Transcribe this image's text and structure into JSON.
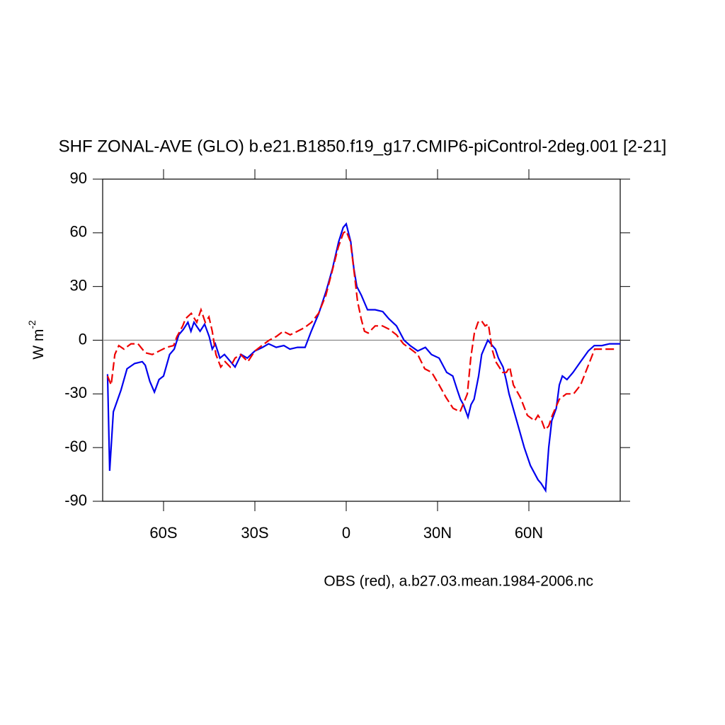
{
  "chart_data": {
    "type": "line",
    "title": "SHF ZONAL-AVE (GLO) b.e21.B1850.f19_g17.CMIP6-piControl-2deg.001 [2-21]",
    "ylabel": "W m",
    "ylabel_superscript": "-2",
    "xlabel": "OBS (red), a.b27.03.mean.1984-2006.nc",
    "xlim": [
      -80,
      90
    ],
    "ylim": [
      -90,
      90
    ],
    "xticks": [
      {
        "value": -60,
        "label": "60S"
      },
      {
        "value": -30,
        "label": "30S"
      },
      0,
      {
        "value": 30,
        "label": "30N"
      },
      {
        "value": 60,
        "label": "60N"
      }
    ],
    "yticks": [
      -90,
      -60,
      -30,
      0,
      30,
      60,
      90
    ],
    "zero_line": true,
    "series": [
      {
        "color": "#0000ee",
        "dash": false,
        "x": [
          -78.4,
          -77.7,
          -76.5,
          -74,
          -72,
          -69.5,
          -67,
          -66,
          -64.5,
          -63,
          -61.5,
          -60,
          -58,
          -56.5,
          -55,
          -53.5,
          -52,
          -51,
          -50,
          -48,
          -46.5,
          -45,
          -44,
          -43,
          -41.5,
          -40,
          -38,
          -36.5,
          -34.5,
          -32.5,
          -30,
          -27.5,
          -25.5,
          -23,
          -20.5,
          -18.5,
          -16,
          -13.5,
          -11.5,
          -9,
          -6.5,
          -4.5,
          -2.5,
          -1,
          0,
          1.5,
          2.5,
          3.5,
          5,
          7,
          9.5,
          12,
          14,
          16.5,
          19,
          21,
          23.5,
          26,
          28,
          30.5,
          33,
          35,
          36.5,
          37.5,
          38.5,
          40,
          41,
          42,
          43.5,
          44.5,
          45.5,
          46.5,
          48,
          49,
          50,
          51.5,
          52.5,
          53.5,
          56,
          58.5,
          60.5,
          63,
          64,
          65.5,
          66.5,
          67.5,
          69,
          70,
          71,
          72.5,
          74.5,
          77,
          79.5,
          81.5,
          84,
          86.5,
          90
        ],
        "values": [
          -19,
          -73,
          -40,
          -28,
          -16,
          -13,
          -12,
          -14,
          -23,
          -29,
          -22,
          -20,
          -8,
          -5,
          3,
          6,
          10,
          5,
          10,
          5,
          9,
          2,
          -5,
          -2,
          -10,
          -8,
          -12,
          -15,
          -8,
          -10,
          -6,
          -4,
          -2,
          -4,
          -3,
          -5,
          -4,
          -4,
          5,
          15,
          28,
          40,
          55,
          63,
          65,
          55,
          40,
          30,
          25,
          17,
          17,
          16,
          12,
          8,
          0,
          -3,
          -6,
          -4,
          -8,
          -10,
          -18,
          -20,
          -28,
          -33,
          -36,
          -43,
          -36,
          -33,
          -20,
          -8,
          -4,
          0,
          -3,
          -5,
          -10,
          -15,
          -22,
          -30,
          -45,
          -60,
          -70,
          -78,
          -80,
          -84,
          -60,
          -45,
          -38,
          -25,
          -20,
          -22,
          -18,
          -12,
          -6,
          -3,
          -3,
          -2,
          -2
        ]
      },
      {
        "color": "#ee0000",
        "dash": true,
        "x": [
          -78.4,
          -77.2,
          -76,
          -74.7,
          -73,
          -70.7,
          -68.4,
          -66,
          -63.7,
          -61.4,
          -59,
          -56.7,
          -55.6,
          -53.7,
          -52.8,
          -50.9,
          -49.1,
          -47.7,
          -46.3,
          -45.1,
          -44,
          -42.8,
          -41.2,
          -39.8,
          -38.1,
          -36.5,
          -34.7,
          -32.3,
          -30,
          -27.7,
          -25.3,
          -23,
          -20.7,
          -18.4,
          -16,
          -13.7,
          -11.4,
          -9.1,
          -6.7,
          -4.4,
          -2.6,
          -0.9,
          0,
          1.4,
          2.6,
          3.7,
          4.9,
          6,
          7.2,
          9.5,
          11.9,
          14.2,
          16.5,
          18.8,
          21.2,
          23.5,
          25.8,
          28.1,
          30.5,
          32.8,
          35.1,
          37.4,
          38.6,
          39.8,
          40.9,
          42.1,
          43.3,
          44.4,
          45.6,
          46.7,
          47.9,
          49.1,
          51.4,
          52.6,
          53.7,
          54.9,
          57.2,
          59.5,
          61.9,
          63,
          64.2,
          65.3,
          66.5,
          67.7,
          70,
          72.3,
          74.7,
          77,
          79.3,
          81.6,
          84,
          88.6
        ],
        "values": [
          -20,
          -25,
          -8,
          -3,
          -5,
          -2,
          -2,
          -7,
          -8,
          -6,
          -4,
          -3,
          2,
          8,
          12,
          15,
          10,
          17,
          10,
          13,
          5,
          -8,
          -15,
          -12,
          -15,
          -10,
          -8,
          -12,
          -6,
          -3,
          0,
          2,
          5,
          3,
          5,
          7,
          10,
          15,
          25,
          40,
          52,
          60,
          61,
          55,
          38,
          22,
          12,
          5,
          4,
          8,
          8,
          6,
          3,
          -2,
          -5,
          -8,
          -16,
          -18,
          -25,
          -32,
          -38,
          -40,
          -35,
          -30,
          -10,
          4,
          10,
          11,
          8,
          9,
          -5,
          -12,
          -18,
          -18,
          -15,
          -25,
          -32,
          -42,
          -45,
          -42,
          -45,
          -50,
          -48,
          -42,
          -33,
          -30,
          -30,
          -25,
          -15,
          -5,
          -5,
          -5
        ]
      }
    ]
  }
}
